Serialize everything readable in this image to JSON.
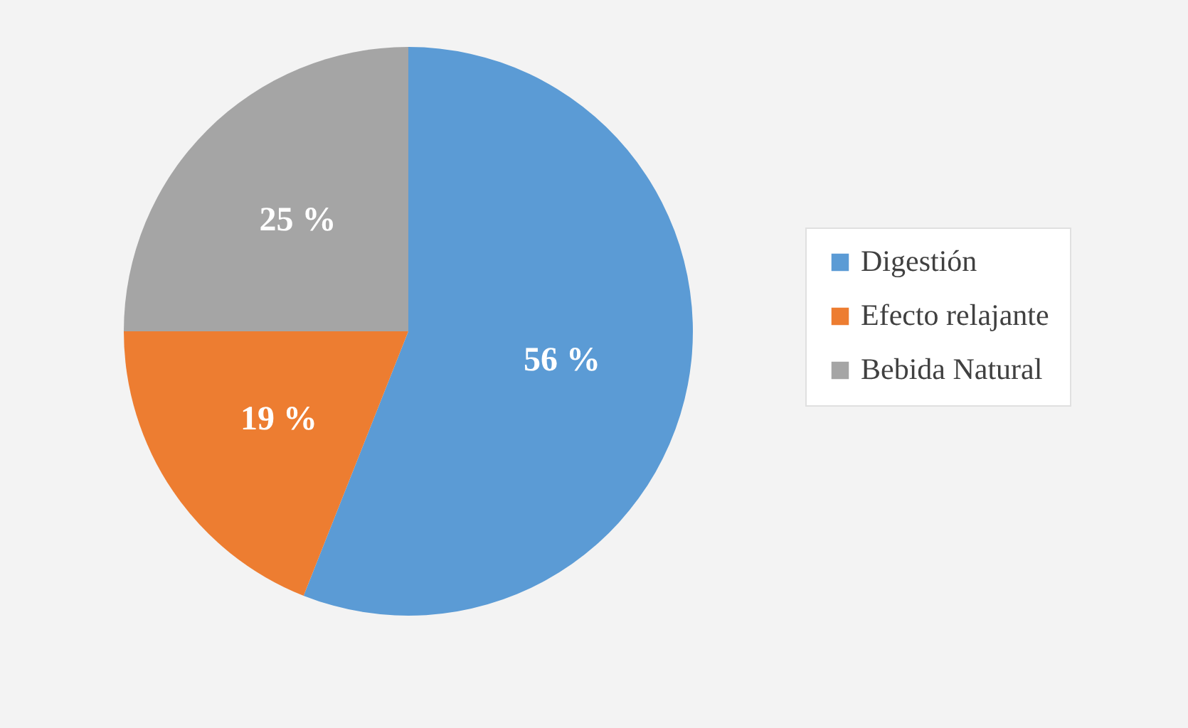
{
  "chart_data": {
    "type": "pie",
    "categories": [
      "Digestión",
      "Efecto relajante",
      "Bebida Natural"
    ],
    "values": [
      56,
      19,
      25
    ],
    "colors": [
      "#5b9bd5",
      "#ed7d31",
      "#a5a5a5"
    ],
    "value_labels": [
      "56 %",
      "19 %",
      "25 %"
    ],
    "legend": "right"
  }
}
